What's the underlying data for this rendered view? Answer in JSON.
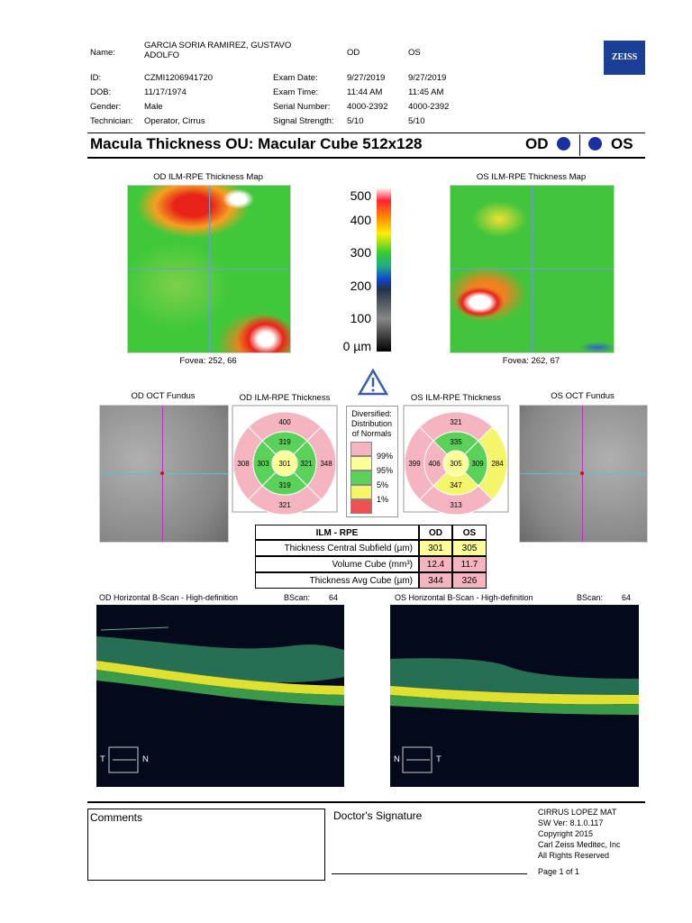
{
  "header": {
    "name_label": "Name:",
    "name": "GARCIA SORIA RAMIREZ, GUSTAVO ADOLFO",
    "od": "OD",
    "os": "OS",
    "logo": "ZEISS",
    "rows": [
      [
        "ID:",
        "CZMI1206941720",
        "Exam Date:",
        "9/27/2019",
        "9/27/2019"
      ],
      [
        "DOB:",
        "11/17/1974",
        "Exam Time:",
        "11:44 AM",
        "11:45 AM"
      ],
      [
        "Gender:",
        "Male",
        "Serial Number:",
        "4000-2392",
        "4000-2392"
      ],
      [
        "Technician:",
        "Operator, Cirrus",
        "Signal Strength:",
        "5/10",
        "5/10"
      ]
    ]
  },
  "title": {
    "text": "Macula Thickness OU: Macular Cube 512x128",
    "od": "OD",
    "os": "OS"
  },
  "maps": {
    "od_title": "OD ILM-RPE Thickness Map",
    "od_fovea": "Fovea: 252, 66",
    "os_title": "OS ILM-RPE Thickness Map",
    "os_fovea": "Fovea: 262, 67",
    "scale": [
      "500",
      "400",
      "300",
      "200",
      "100",
      "0 µm"
    ]
  },
  "fundus": {
    "od_title": "OD OCT Fundus",
    "os_title": "OS OCT Fundus"
  },
  "thickness": {
    "od": {
      "title": "OD ILM-RPE Thickness",
      "center": 301,
      "inner": [
        319,
        321,
        319,
        303
      ],
      "outer": [
        400,
        348,
        321,
        308
      ]
    },
    "os": {
      "title": "OS ILM-RPE Thickness",
      "center": 305,
      "inner": [
        335,
        309,
        347,
        406
      ],
      "outer": [
        321,
        284,
        313,
        399
      ]
    }
  },
  "legend": {
    "title": "Diversified: Distribution of Normals",
    "items": [
      "99%",
      "95%",
      "5%",
      "1%"
    ]
  },
  "table": {
    "header": [
      "ILM - RPE",
      "OD",
      "OS"
    ],
    "rows": [
      [
        "Thickness Central Subfield (µm)",
        301,
        305
      ],
      [
        "Volume Cube (mm³)",
        12.4,
        11.7
      ],
      [
        "Thickness Avg Cube (µm)",
        344,
        326
      ]
    ]
  },
  "bscans": {
    "od_title": "OD Horizontal B-Scan - High-definition",
    "os_title": "OS Horizontal B-Scan - High-definition",
    "bscan_label": "BScan:",
    "od_number": 64,
    "os_number": 64,
    "od_left": "T",
    "od_right": "N",
    "os_left": "N",
    "os_right": "T"
  },
  "footer": {
    "comments": "Comments",
    "signature": "Doctor's Signature",
    "info": [
      "CIRRUS LOPEZ MAT",
      "SW Ver: 8.1.0.117",
      "Copyright 2015",
      "Carl Zeiss Meditec, Inc",
      "All Rights Reserved"
    ],
    "page": "Page 1 of 1"
  }
}
